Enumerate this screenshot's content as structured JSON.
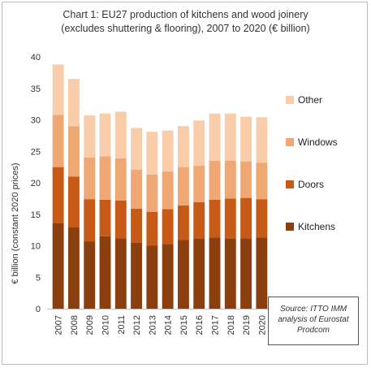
{
  "chart_data": {
    "type": "bar",
    "stacked": true,
    "title_line1": "Chart 1: EU27 production of kitchens and wood joinery",
    "title_line2": "(excludes shuttering & flooring), 2007 to 2020 (€ billion)",
    "xlabel": "",
    "ylabel": "€ billion (constant 2020 prices)",
    "ylim": [
      0,
      40
    ],
    "yticks": [
      0,
      5,
      10,
      15,
      20,
      25,
      30,
      35,
      40
    ],
    "categories": [
      "2007",
      "2008",
      "2009",
      "2010",
      "2011",
      "2012",
      "2013",
      "2014",
      "2015",
      "2016",
      "2017",
      "2018",
      "2019",
      "2020"
    ],
    "series": [
      {
        "name": "Kitchens",
        "color": "#8B3F0F",
        "values": [
          13.6,
          12.9,
          10.7,
          11.5,
          11.2,
          10.5,
          10.0,
          10.3,
          10.9,
          11.1,
          11.3,
          11.1,
          11.2,
          11.3
        ]
      },
      {
        "name": "Doors",
        "color": "#C65A16",
        "values": [
          8.9,
          8.1,
          6.7,
          5.8,
          6.0,
          5.4,
          5.4,
          5.5,
          5.5,
          5.8,
          6.0,
          6.4,
          6.4,
          6.1
        ]
      },
      {
        "name": "Windows",
        "color": "#EFA874",
        "values": [
          8.3,
          8.0,
          6.6,
          6.9,
          6.7,
          6.2,
          5.9,
          6.0,
          6.1,
          5.8,
          6.2,
          6.0,
          5.8,
          5.8
        ]
      },
      {
        "name": "Other",
        "color": "#F9CCAA",
        "values": [
          8.0,
          7.5,
          6.7,
          6.8,
          7.4,
          6.6,
          6.8,
          6.5,
          6.5,
          7.2,
          7.5,
          7.5,
          7.1,
          7.2
        ]
      }
    ],
    "legend_order": [
      "Other",
      "Windows",
      "Doors",
      "Kitchens"
    ],
    "legend_position": "right",
    "grid": false
  },
  "source_note": {
    "line1": "Source: ITTO IMM",
    "line2": "analysis of Eurostat",
    "line3": "Prodcom"
  }
}
